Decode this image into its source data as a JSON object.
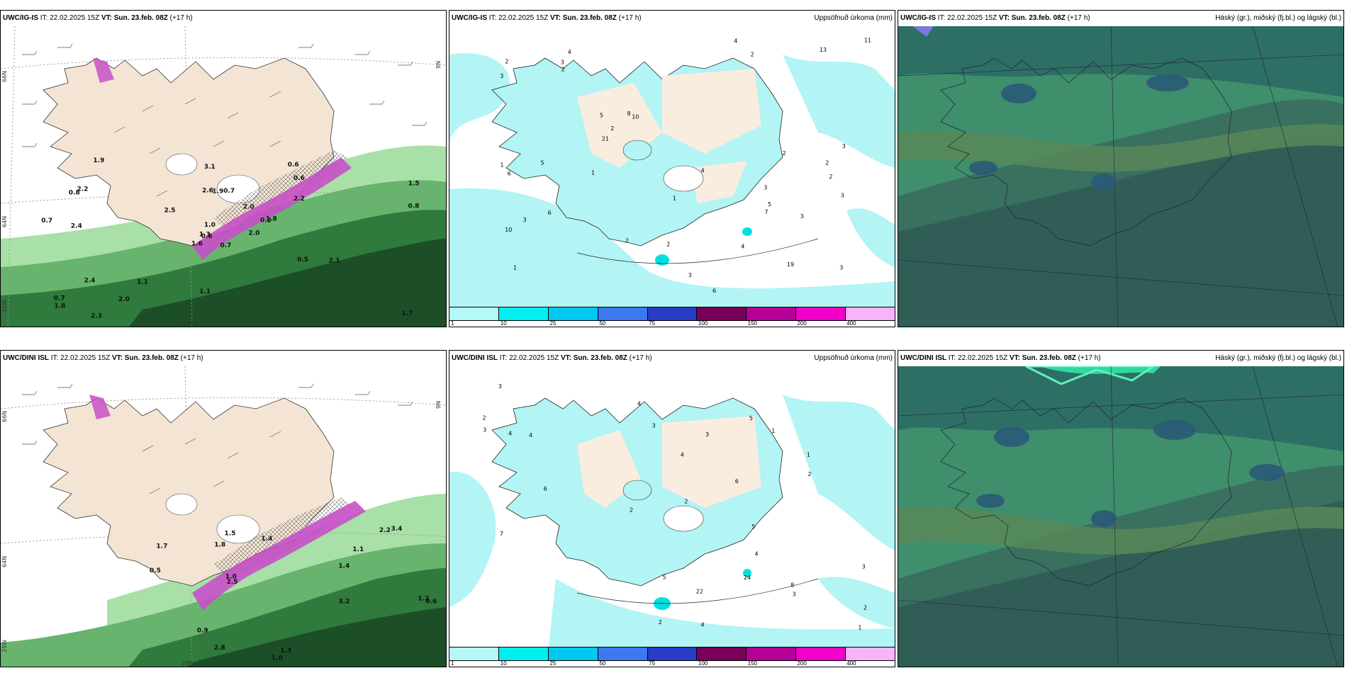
{
  "run": {
    "it_label": "IT:",
    "it": "22.02.2025 15Z",
    "vt_label": "VT:",
    "vt": "Sun. 23.feb. 08Z",
    "lead": "(+17 h)"
  },
  "rows": [
    {
      "model": "UWC/IG-IS"
    },
    {
      "model": "UWC/DINI ISL"
    }
  ],
  "titles": {
    "precip": "Uppsöfnuð úrkoma (mm)",
    "cloud": "Háský (gr.), miðský (fj.bl.) og lágský (bl.)"
  },
  "side_labels": {
    "lat66": "66N",
    "lat64": "64N",
    "lat9": "9N",
    "lon25": "25W",
    "lon20": "20W"
  },
  "precip_legend": {
    "labels": [
      "1",
      "10",
      "25",
      "50",
      "75",
      "100",
      "150",
      "200",
      "400"
    ],
    "colors": [
      "#b4f8f8",
      "#00f0f0",
      "#00c8f0",
      "#3c78f0",
      "#283cc8",
      "#78005a",
      "#b40096",
      "#f000c8",
      "#f8b4f8"
    ]
  },
  "colors": {
    "land": "#f3e4d4",
    "sea_precip": "#b3f4f4",
    "green_dark": "#1e5a2a",
    "green_mid": "#3c8c46",
    "green_light": "#a0dca0",
    "snow_magenta": "#c850c8",
    "cloud_teal": "#2e6e64",
    "cloud_green": "#4a9a6c",
    "cloud_blue": "#2a5a78"
  },
  "row_values": [
    {
      "wind": [
        "0.7",
        "0.8",
        "0.6",
        "0.7",
        "0.2",
        "1.1",
        "0.6",
        "0.7",
        "0.6",
        "2.0",
        "1.9",
        "1.7",
        "2.4",
        "1.5",
        "1.6",
        "2.2",
        "2.3",
        "2.6",
        "2.0",
        "2.4",
        "2.5",
        "1.8",
        "2.0",
        "1.9",
        "1.8",
        "2.1",
        "2.2",
        "3.1",
        "0.7",
        "0.5",
        "0.8",
        "1.3",
        "1.1",
        "1.0"
      ],
      "precip": [
        "3",
        "2",
        "1",
        "4",
        "10",
        "19",
        "10",
        "2",
        "5",
        "6",
        "3",
        "1",
        "2",
        "3",
        "2",
        "3",
        "1",
        "4",
        "8",
        "6",
        "11",
        "13",
        "21",
        "3",
        "4",
        "3",
        "5",
        "6",
        "2",
        "2",
        "3",
        "4",
        "2",
        "1",
        "2",
        "3",
        "7",
        "5",
        "2",
        "3"
      ]
    },
    {
      "wind": [
        "1.7",
        "1.8",
        "1.4",
        "1.3",
        "2.2",
        "1.0",
        "3.2",
        "2.5",
        "3.4",
        "0.6",
        "1.2",
        "1.5",
        "1.1",
        "0.9",
        "0.5",
        "2.8",
        "1.0",
        "1.4"
      ],
      "precip": [
        "4",
        "3",
        "2",
        "1",
        "2",
        "3",
        "4",
        "5",
        "6",
        "7",
        "8",
        "3",
        "5",
        "4",
        "2",
        "1",
        "3",
        "24",
        "22",
        "4",
        "3",
        "5",
        "6",
        "2",
        "2",
        "4",
        "3",
        "1",
        "2",
        "4"
      ]
    }
  ]
}
